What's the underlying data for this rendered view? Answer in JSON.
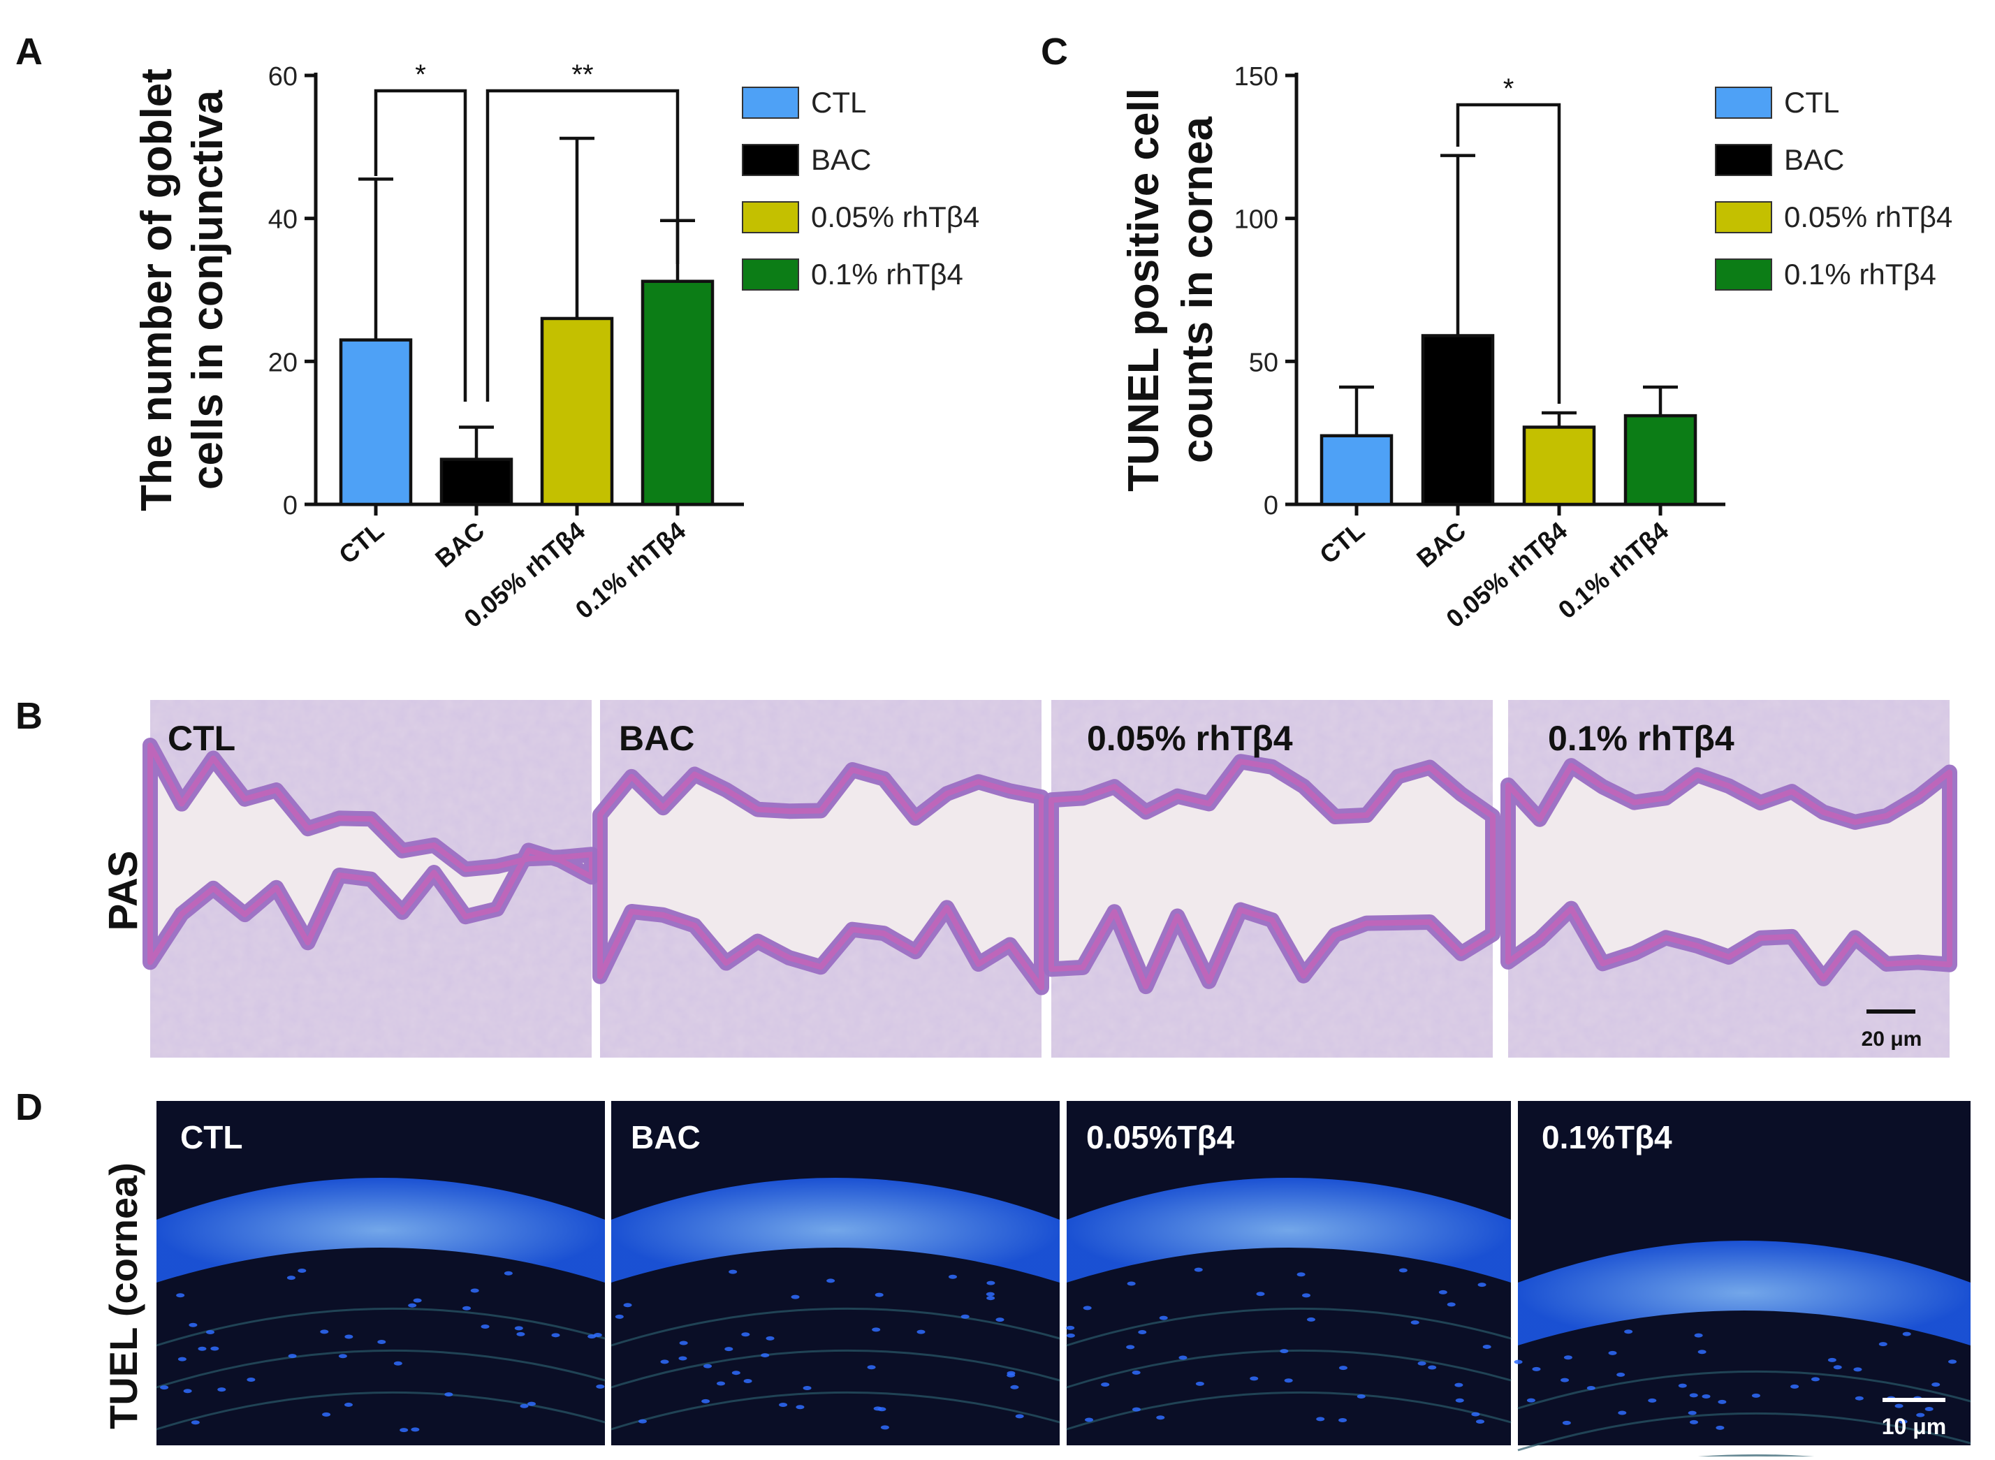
{
  "panels": {
    "a": "A",
    "b": "B",
    "c": "C",
    "d": "D"
  },
  "chart_data": [
    {
      "type": "bar",
      "panel": "A",
      "ylabel_line1": "The number of goblet",
      "ylabel_line2": "cells in conjunctiva",
      "categories": [
        "CTL",
        "BAC",
        "0.05% rhTβ4",
        "0.1% rhTβ4"
      ],
      "values": [
        23,
        6.3,
        26,
        31.2
      ],
      "errors": [
        22.5,
        4.5,
        25.2,
        8.5
      ],
      "colors": [
        "#4ea1f6",
        "#000000",
        "#c4c000",
        "#0c7d16"
      ],
      "ylim": [
        0,
        60
      ],
      "yticks": [
        0,
        20,
        40,
        60
      ],
      "legend": [
        "CTL",
        "BAC",
        "0.05% rhTβ4",
        "0.1% rhTβ4"
      ],
      "legend_position": "right",
      "significance": [
        {
          "from": 0,
          "to": 1,
          "label": "*"
        },
        {
          "from": 1,
          "to": 3,
          "label": "**"
        }
      ]
    },
    {
      "type": "bar",
      "panel": "C",
      "ylabel_line1": "TUNEL positive cell",
      "ylabel_line2": "counts in cornea",
      "categories": [
        "CTL",
        "BAC",
        "0.05% rhTβ4",
        "0.1% rhTβ4"
      ],
      "values": [
        24,
        59,
        27,
        31
      ],
      "errors": [
        17,
        63,
        5,
        10
      ],
      "colors": [
        "#4ea1f6",
        "#000000",
        "#c4c000",
        "#0c7d16"
      ],
      "ylim": [
        0,
        150
      ],
      "yticks": [
        0,
        50,
        100,
        150
      ],
      "legend": [
        "CTL",
        "BAC",
        "0.05% rhTβ4",
        "0.1% rhTβ4"
      ],
      "legend_position": "right",
      "significance": [
        {
          "from": 1,
          "to": 2,
          "label": "*"
        }
      ]
    }
  ],
  "pas": {
    "row_label": "PAS",
    "labels": [
      "CTL",
      "BAC",
      "0.05% rhTβ4",
      "0.1% rhTβ4"
    ],
    "scale_bar": "20 μm"
  },
  "tunel": {
    "row_label": "TUEL (cornea)",
    "labels": [
      "CTL",
      "BAC",
      "0.05%Tβ4",
      "0.1%Tβ4"
    ],
    "scale_bar": "10 μm"
  }
}
